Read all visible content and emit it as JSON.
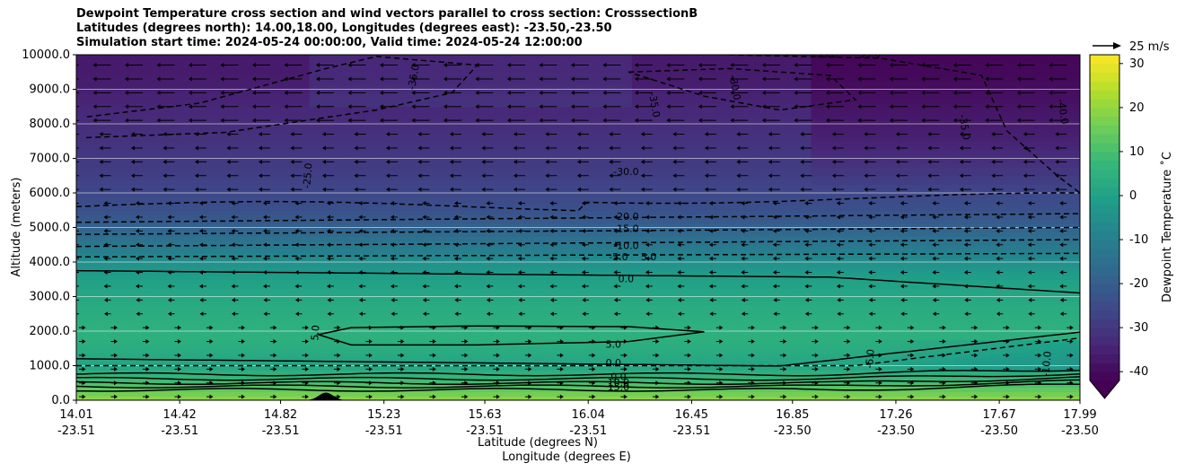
{
  "title_lines": [
    "Dewpoint Temperature cross section and wind vectors parallel to cross section: CrosssectionB",
    "Latitudes (degrees north): 14.00,18.00, Longitudes (degrees east): -23.50,-23.50",
    "Simulation start time: 2024-05-24 00:00:00, Valid time: 2024-05-24 12:00:00"
  ],
  "chart_data": {
    "type": "heatmap",
    "title": "Dewpoint Temperature cross section and wind vectors parallel to cross section: CrosssectionB",
    "ylabel": "Altitude (meters)",
    "xlabel_lat": "Latitude (degrees N)",
    "xlabel_lon": "Longitude (degrees E)",
    "ylim": [
      0,
      10000
    ],
    "xlim": [
      14.01,
      17.99
    ],
    "yticks": [
      "0.0",
      "1000.0",
      "2000.0",
      "3000.0",
      "4000.0",
      "5000.0",
      "6000.0",
      "7000.0",
      "8000.0",
      "9000.0",
      "10000.0"
    ],
    "xticks": [
      {
        "lat": "14.01",
        "lon": "-23.51"
      },
      {
        "lat": "14.42",
        "lon": "-23.51"
      },
      {
        "lat": "14.82",
        "lon": "-23.51"
      },
      {
        "lat": "15.23",
        "lon": "-23.51"
      },
      {
        "lat": "15.63",
        "lon": "-23.51"
      },
      {
        "lat": "16.04",
        "lon": "-23.51"
      },
      {
        "lat": "16.45",
        "lon": "-23.51"
      },
      {
        "lat": "16.85",
        "lon": "-23.50"
      },
      {
        "lat": "17.26",
        "lon": "-23.50"
      },
      {
        "lat": "17.67",
        "lon": "-23.50"
      },
      {
        "lat": "17.99",
        "lon": "-23.50"
      }
    ],
    "grid": "horizontal",
    "colorbar": {
      "label": "Dewpoint Temperature $^\\circ$C",
      "label_display": "Dewpoint Temperature ˚C",
      "range": [
        -42,
        32
      ],
      "ticks": [
        -40,
        -30,
        -20,
        -10,
        0,
        10,
        20,
        30
      ],
      "extend": "min",
      "colormap": "viridis"
    },
    "quiver_key": "25 m/s",
    "terrain": {
      "center_lat": 15.0,
      "peak_m": 220,
      "half_width_deg": 0.04
    },
    "contour_labels": [
      {
        "text": "-35.0",
        "lat": 15.35,
        "alt": 9350,
        "rot": -80
      },
      {
        "text": "-35.0",
        "lat": 16.3,
        "alt": 8550,
        "rot": 80
      },
      {
        "text": "-35.0",
        "lat": 16.98,
        "alt": 10000,
        "rot": 0
      },
      {
        "text": "-35.0",
        "lat": 17.15,
        "alt": 10000,
        "rot": 0
      },
      {
        "text": "-30.0",
        "lat": 16.62,
        "alt": 9050,
        "rot": 80
      },
      {
        "text": "-35.0",
        "lat": 17.53,
        "alt": 7900,
        "rot": 80
      },
      {
        "text": "-40.0",
        "lat": 17.92,
        "alt": 8350,
        "rot": 80
      },
      {
        "text": "-30.0",
        "lat": 16.19,
        "alt": 6600,
        "rot": 0
      },
      {
        "text": "-25.0",
        "lat": 14.93,
        "alt": 6500,
        "rot": -85
      },
      {
        "text": "-20.0",
        "lat": 16.19,
        "alt": 5300,
        "rot": 0
      },
      {
        "text": "-15.0",
        "lat": 16.19,
        "alt": 4950,
        "rot": 0
      },
      {
        "text": "-10.0",
        "lat": 16.19,
        "alt": 4450,
        "rot": 0
      },
      {
        "text": "-5.0",
        "lat": 16.16,
        "alt": 4130,
        "rot": 0
      },
      {
        "text": "5.0",
        "lat": 16.28,
        "alt": 4130,
        "rot": 0
      },
      {
        "text": "0.0",
        "lat": 16.19,
        "alt": 3500,
        "rot": 0
      },
      {
        "text": "5.0",
        "lat": 14.96,
        "alt": 1950,
        "rot": -85
      },
      {
        "text": "5.0",
        "lat": 16.14,
        "alt": 1600,
        "rot": 0
      },
      {
        "text": "0.0",
        "lat": 16.14,
        "alt": 1070,
        "rot": 0
      },
      {
        "text": "-5.0",
        "lat": 17.16,
        "alt": 1200,
        "rot": -85
      },
      {
        "text": "-10.0",
        "lat": 17.86,
        "alt": 1050,
        "rot": -85
      },
      {
        "text": "0.0",
        "lat": 16.16,
        "alt": 660,
        "rot": 0
      },
      {
        "text": "10.0",
        "lat": 16.16,
        "alt": 500,
        "rot": 0
      },
      {
        "text": "15.0",
        "lat": 16.16,
        "alt": 360,
        "rot": 0
      }
    ]
  }
}
